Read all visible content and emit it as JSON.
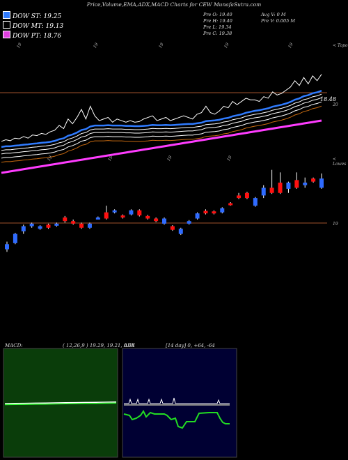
{
  "header": {
    "title": "Price,Volume,EMA,ADX,MACD Charts for CEW MunafaSutra.com"
  },
  "legend": [
    {
      "label": "DOW ST: 19.25",
      "color": "#2f7bff"
    },
    {
      "label": "DOW MT: 19.13",
      "color": "#000000"
    },
    {
      "label": "DOW PT: 18.76",
      "color": "#e040e0"
    }
  ],
  "ohlc": {
    "open": "Pre   O: 19.40",
    "high": "Pre   H: 19.40",
    "low": "Pre   L: 19.34",
    "close": "Pre   C: 19.38",
    "avg_volume": "Avg V: 0  M",
    "prev_volume": "Pre   V: 0.005 M"
  },
  "labels": {
    "top_date": "19",
    "top_right": "< Topo",
    "mid_date": "19",
    "mid_right": "< Lowes",
    "price_level": "18.48",
    "price_level_2": "20",
    "lower_level": "19"
  },
  "macd": {
    "name": "MACD:",
    "params": "( 12,26,9 ) 19.29,  19.21,  0.08"
  },
  "adx": {
    "name": "ADX",
    "params": "[14  day] 0,  +64,  -64"
  },
  "colors": {
    "up": "#2f6bff",
    "down": "#ff1010",
    "ema_fast": "#2f7bff",
    "ema_mid": "#ffffff",
    "ema_slow": "#c86a10",
    "ema_long": "#ff3cff",
    "grid": "#a0522d",
    "macd_bg": "#0a3d0a",
    "adx_bg": "#000033"
  },
  "chart_data": {
    "type": "candlestick",
    "price_line": [
      18.2,
      18.25,
      18.22,
      18.3,
      18.28,
      18.35,
      18.3,
      18.4,
      18.38,
      18.45,
      18.42,
      18.5,
      18.55,
      18.7,
      18.6,
      18.9,
      18.75,
      18.95,
      19.2,
      18.9,
      19.3,
      19.0,
      18.85,
      18.9,
      18.95,
      18.8,
      18.9,
      18.85,
      18.8,
      18.85,
      18.8,
      18.82,
      18.9,
      18.95,
      19.0,
      18.85,
      18.9,
      18.95,
      18.85,
      18.9,
      18.95,
      19.0,
      18.95,
      18.9,
      19.05,
      19.1,
      19.3,
      19.1,
      19.05,
      19.15,
      19.3,
      19.25,
      19.45,
      19.35,
      19.45,
      19.55,
      19.5,
      19.5,
      19.45,
      19.6,
      19.55,
      19.75,
      19.65,
      19.7,
      19.8,
      19.9,
      20.1,
      19.95,
      20.2,
      20.0,
      20.25,
      20.1,
      20.3
    ],
    "ema_fast": [
      18.2,
      18.22,
      18.22,
      18.24,
      18.25,
      18.27,
      18.28,
      18.3,
      18.31,
      18.33,
      18.34,
      18.36,
      18.39,
      18.44,
      18.47,
      18.55,
      18.59,
      18.65,
      18.73,
      18.76,
      18.84,
      18.87,
      18.87,
      18.87,
      18.88,
      18.87,
      18.87,
      18.87,
      18.86,
      18.86,
      18.85,
      18.85,
      18.86,
      18.87,
      18.89,
      18.88,
      18.88,
      18.89,
      18.88,
      18.89,
      18.9,
      18.91,
      18.92,
      18.92,
      18.94,
      18.96,
      19.01,
      19.02,
      19.03,
      19.05,
      19.09,
      19.11,
      19.16,
      19.19,
      19.22,
      19.27,
      19.3,
      19.33,
      19.35,
      19.38,
      19.41,
      19.46,
      19.49,
      19.52,
      19.56,
      19.61,
      19.68,
      19.72,
      19.79,
      19.82,
      19.88,
      19.91,
      19.96
    ],
    "candles": [
      {
        "o": 18.0,
        "c": 18.1,
        "h": 18.15,
        "l": 17.95,
        "dir": "up"
      },
      {
        "o": 18.12,
        "c": 18.3,
        "h": 18.32,
        "l": 18.1,
        "dir": "up"
      },
      {
        "o": 18.35,
        "c": 18.45,
        "h": 18.48,
        "l": 18.3,
        "dir": "up"
      },
      {
        "o": 18.45,
        "c": 18.5,
        "h": 18.52,
        "l": 18.42,
        "dir": "up"
      },
      {
        "o": 18.4,
        "c": 18.45,
        "h": 18.47,
        "l": 18.38,
        "dir": "up"
      },
      {
        "o": 18.48,
        "c": 18.42,
        "h": 18.5,
        "l": 18.4,
        "dir": "down"
      },
      {
        "o": 18.46,
        "c": 18.5,
        "h": 18.52,
        "l": 18.44,
        "dir": "up"
      },
      {
        "o": 18.62,
        "c": 18.55,
        "h": 18.65,
        "l": 18.52,
        "dir": "down"
      },
      {
        "o": 18.55,
        "c": 18.5,
        "h": 18.58,
        "l": 18.48,
        "dir": "down"
      },
      {
        "o": 18.5,
        "c": 18.42,
        "h": 18.52,
        "l": 18.4,
        "dir": "down"
      },
      {
        "o": 18.42,
        "c": 18.5,
        "h": 18.52,
        "l": 18.4,
        "dir": "up"
      },
      {
        "o": 18.6,
        "c": 18.62,
        "h": 18.64,
        "l": 18.58,
        "dir": "up"
      },
      {
        "o": 18.72,
        "c": 18.6,
        "h": 18.85,
        "l": 18.58,
        "dir": "down"
      },
      {
        "o": 18.72,
        "c": 18.76,
        "h": 18.78,
        "l": 18.7,
        "dir": "up"
      },
      {
        "o": 18.66,
        "c": 18.62,
        "h": 18.68,
        "l": 18.6,
        "dir": "down"
      },
      {
        "o": 18.68,
        "c": 18.76,
        "h": 18.78,
        "l": 18.66,
        "dir": "up"
      },
      {
        "o": 18.76,
        "c": 18.66,
        "h": 18.78,
        "l": 18.64,
        "dir": "down"
      },
      {
        "o": 18.65,
        "c": 18.6,
        "h": 18.67,
        "l": 18.58,
        "dir": "down"
      },
      {
        "o": 18.6,
        "c": 18.55,
        "h": 18.62,
        "l": 18.53,
        "dir": "down"
      },
      {
        "o": 18.5,
        "c": 18.6,
        "h": 18.62,
        "l": 18.48,
        "dir": "up"
      },
      {
        "o": 18.45,
        "c": 18.38,
        "h": 18.47,
        "l": 18.36,
        "dir": "down"
      },
      {
        "o": 18.3,
        "c": 18.4,
        "h": 18.42,
        "l": 18.28,
        "dir": "up"
      },
      {
        "o": 18.5,
        "c": 18.55,
        "h": 18.57,
        "l": 18.48,
        "dir": "up"
      },
      {
        "o": 18.6,
        "c": 18.7,
        "h": 18.72,
        "l": 18.58,
        "dir": "up"
      },
      {
        "o": 18.75,
        "c": 18.7,
        "h": 18.78,
        "l": 18.68,
        "dir": "down"
      },
      {
        "o": 18.74,
        "c": 18.7,
        "h": 18.76,
        "l": 18.68,
        "dir": "down"
      },
      {
        "o": 18.72,
        "c": 18.8,
        "h": 18.82,
        "l": 18.7,
        "dir": "up"
      },
      {
        "o": 18.9,
        "c": 18.88,
        "h": 18.92,
        "l": 18.85,
        "dir": "down"
      },
      {
        "o": 19.05,
        "c": 19.0,
        "h": 19.1,
        "l": 18.98,
        "dir": "down"
      },
      {
        "o": 19.1,
        "c": 19.0,
        "h": 19.12,
        "l": 18.98,
        "dir": "down"
      },
      {
        "o": 19.0,
        "c": 18.85,
        "h": 19.02,
        "l": 18.83,
        "dir": "up"
      },
      {
        "o": 19.05,
        "c": 19.2,
        "h": 19.25,
        "l": 19.0,
        "dir": "up"
      },
      {
        "o": 19.2,
        "c": 19.1,
        "h": 19.55,
        "l": 19.08,
        "dir": "down"
      },
      {
        "o": 19.3,
        "c": 19.1,
        "h": 19.5,
        "l": 19.08,
        "dir": "down"
      },
      {
        "o": 19.18,
        "c": 19.3,
        "h": 19.32,
        "l": 19.1,
        "dir": "up"
      },
      {
        "o": 19.35,
        "c": 19.2,
        "h": 19.5,
        "l": 19.18,
        "dir": "down"
      },
      {
        "o": 19.25,
        "c": 19.3,
        "h": 19.4,
        "l": 19.2,
        "dir": "up"
      },
      {
        "o": 19.38,
        "c": 19.32,
        "h": 19.4,
        "l": 19.3,
        "dir": "down"
      },
      {
        "o": 19.38,
        "c": 19.2,
        "h": 19.48,
        "l": 19.18,
        "dir": "up"
      }
    ],
    "macd_line": [
      0.1,
      0.1,
      0.1,
      0.1,
      0.1,
      0.1,
      0.1,
      0.1,
      0.1,
      0.1,
      0.1,
      0.1
    ],
    "adx_plus": [
      0.3,
      0.32,
      0.4,
      0.42,
      0.5,
      0.48,
      0.45,
      0.55,
      0.52,
      0.5,
      0.55,
      0.6
    ],
    "adx_minus": [
      0.8,
      0.8,
      0.8,
      0.8,
      0.8,
      0.8,
      0.8,
      0.8,
      0.8,
      0.8,
      0.8,
      0.8
    ]
  }
}
